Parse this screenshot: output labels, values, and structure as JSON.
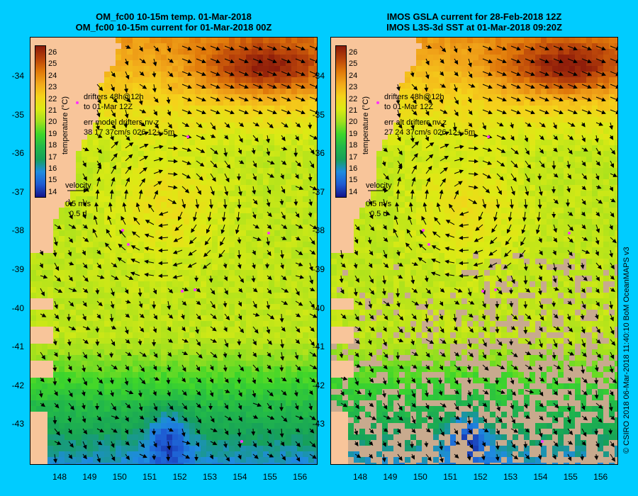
{
  "colors": {
    "background": "#00ccff",
    "land": "#f8c59a",
    "no_data": "#c8aa8e",
    "drifters": "#ff33ff",
    "arrows": "#000000"
  },
  "colorbar": {
    "label": "temperature (°C)",
    "ticks": [
      "26",
      "25",
      "24",
      "23",
      "22",
      "21",
      "20",
      "19",
      "18",
      "17",
      "16",
      "15",
      "14"
    ],
    "stops": [
      "#8b1a0a",
      "#b8420a",
      "#e0780a",
      "#f2a81a",
      "#f5d21a",
      "#dcea14",
      "#a0e01e",
      "#3ed62a",
      "#22b84a",
      "#16a05a",
      "#1e8ce0",
      "#1e5ad2",
      "#14148a"
    ]
  },
  "panels": [
    {
      "id": "model",
      "title_line1": "OM_fc00 10-15m temp. 01-Mar-2018",
      "title_line2": "OM_fc00 10-15m current for 01-Mar-2018 00Z",
      "legend_drifters": "drifters 48h@12h",
      "legend_to": "to 01-Mar 12Z",
      "legend_err": "err model drifters nv z",
      "legend_stats": "38 17 37cm/s 026 12+-5m",
      "velocity_label": "velocity",
      "velocity_scale": "0.5 m/s",
      "velocity_time": "0.5 d"
    },
    {
      "id": "observed",
      "title_line1": "IMOS GSLA current for 28-Feb-2018 12Z",
      "title_line2": "IMOS L3S-3d SST at 01-Mar-2018 09:20Z",
      "legend_drifters": "drifters 48h@12h",
      "legend_to": "to 01-Mar 12Z",
      "legend_err": "err alt drifters nv z",
      "legend_stats": "27 24 37cm/s 026 12+-5m",
      "velocity_label": "velocity",
      "velocity_scale": "0.5 m/s",
      "velocity_time": "0.5 d"
    }
  ],
  "axes": {
    "latitudes": [
      "-34",
      "-35",
      "-36",
      "-37",
      "-38",
      "-39",
      "-40",
      "-41",
      "-42",
      "-43"
    ],
    "longitudes": [
      "148",
      "149",
      "150",
      "151",
      "152",
      "153",
      "154",
      "155",
      "156"
    ]
  },
  "credit": "© CSIRO 2018   06-Mar-2018 11:40:10 BoM OceanMAPS v3"
}
